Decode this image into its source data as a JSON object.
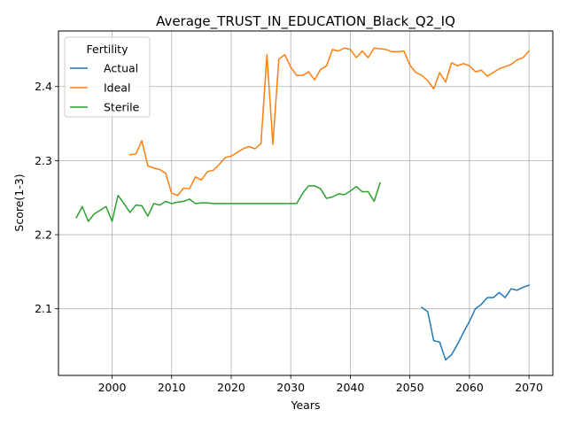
{
  "chart_data": {
    "type": "line",
    "title": "Average_TRUST_IN_EDUCATION_Black_Q2_IQ",
    "xlabel": "Years",
    "ylabel": "Score(1-3)",
    "xlim": [
      1991,
      2074
    ],
    "ylim": [
      2.01,
      2.475
    ],
    "xticks": [
      2000,
      2010,
      2020,
      2030,
      2040,
      2050,
      2060,
      2070
    ],
    "yticks": [
      2.1,
      2.2,
      2.3,
      2.4
    ],
    "grid": true,
    "legend": {
      "title": "Fertility",
      "position": "top-left"
    },
    "series": [
      {
        "name": "Actual",
        "color": "#1f77b4",
        "x": [
          2052,
          2053,
          2054,
          2055,
          2056,
          2057,
          2058,
          2059,
          2060,
          2061,
          2062,
          2063,
          2064,
          2065,
          2066,
          2067,
          2068,
          2069,
          2070
        ],
        "y": [
          2.102,
          2.096,
          2.057,
          2.055,
          2.031,
          2.038,
          2.052,
          2.068,
          2.083,
          2.1,
          2.106,
          2.115,
          2.115,
          2.122,
          2.115,
          2.127,
          2.125,
          2.129,
          2.132
        ]
      },
      {
        "name": "Ideal",
        "color": "#ff7f0e",
        "x": [
          2003,
          2004,
          2005,
          2006,
          2007,
          2008,
          2009,
          2010,
          2011,
          2012,
          2013,
          2014,
          2015,
          2016,
          2017,
          2018,
          2019,
          2020,
          2021,
          2022,
          2023,
          2024,
          2025,
          2026,
          2027,
          2028,
          2029,
          2030,
          2031,
          2032,
          2033,
          2034,
          2035,
          2036,
          2037,
          2038,
          2039,
          2040,
          2041,
          2042,
          2043,
          2044,
          2045,
          2046,
          2047,
          2048,
          2049,
          2050,
          2051,
          2052,
          2053,
          2054,
          2055,
          2056,
          2057,
          2058,
          2059,
          2060,
          2061,
          2062,
          2063,
          2064,
          2065,
          2066,
          2067,
          2068,
          2069,
          2070
        ],
        "y": [
          2.308,
          2.309,
          2.327,
          2.293,
          2.29,
          2.288,
          2.283,
          2.256,
          2.253,
          2.263,
          2.262,
          2.278,
          2.274,
          2.285,
          2.287,
          2.295,
          2.304,
          2.306,
          2.311,
          2.316,
          2.319,
          2.316,
          2.323,
          2.443,
          2.322,
          2.437,
          2.443,
          2.426,
          2.415,
          2.415,
          2.42,
          2.409,
          2.423,
          2.428,
          2.45,
          2.448,
          2.452,
          2.45,
          2.439,
          2.448,
          2.439,
          2.452,
          2.451,
          2.45,
          2.447,
          2.447,
          2.448,
          2.429,
          2.419,
          2.415,
          2.408,
          2.397,
          2.419,
          2.406,
          2.432,
          2.428,
          2.431,
          2.428,
          2.42,
          2.422,
          2.414,
          2.419,
          2.424,
          2.427,
          2.43,
          2.436,
          2.439,
          2.448
        ]
      },
      {
        "name": "Sterile",
        "color": "#2ca02c",
        "x": [
          1994,
          1995,
          1996,
          1997,
          1998,
          1999,
          2000,
          2001,
          2002,
          2003,
          2004,
          2005,
          2006,
          2007,
          2008,
          2009,
          2010,
          2011,
          2012,
          2013,
          2014,
          2015,
          2016,
          2017,
          2018,
          2019,
          2020,
          2021,
          2022,
          2023,
          2024,
          2025,
          2026,
          2027,
          2028,
          2029,
          2030,
          2031,
          2032,
          2033,
          2034,
          2035,
          2036,
          2037,
          2038,
          2039,
          2040,
          2041,
          2042,
          2043,
          2044,
          2045
        ],
        "y": [
          2.223,
          2.238,
          2.218,
          2.228,
          2.233,
          2.238,
          2.218,
          2.253,
          2.242,
          2.23,
          2.24,
          2.239,
          2.225,
          2.242,
          2.24,
          2.245,
          2.242,
          2.244,
          2.245,
          2.248,
          2.242,
          2.243,
          2.243,
          2.242,
          2.242,
          2.242,
          2.242,
          2.242,
          2.242,
          2.242,
          2.242,
          2.242,
          2.242,
          2.242,
          2.242,
          2.242,
          2.242,
          2.242,
          2.256,
          2.266,
          2.266,
          2.262,
          2.249,
          2.251,
          2.255,
          2.254,
          2.259,
          2.265,
          2.258,
          2.258,
          2.245,
          2.27
        ]
      }
    ]
  }
}
